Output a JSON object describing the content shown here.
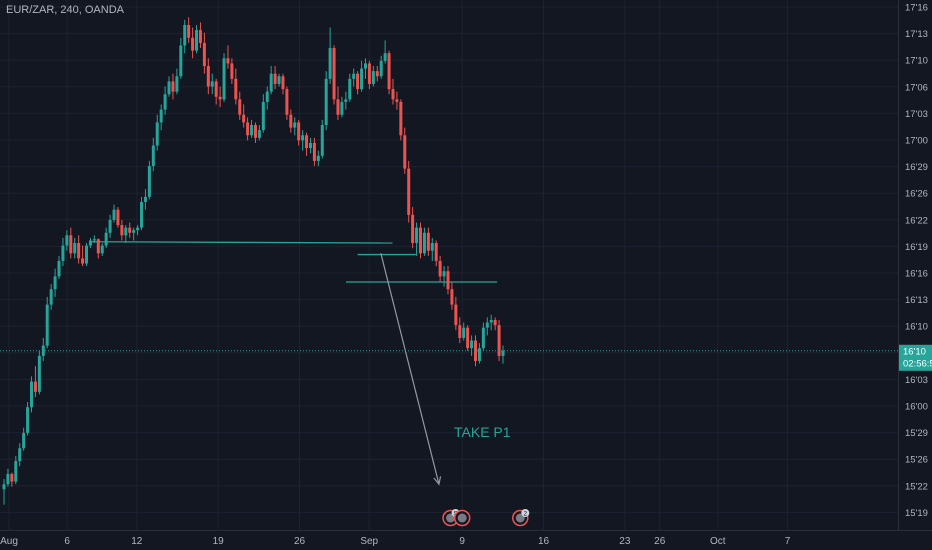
{
  "header": {
    "symbol_line": "EUR/ZAR, 240, OANDA"
  },
  "colors": {
    "background": "#131722",
    "grid": "#1e2230",
    "axis_text": "#b2b5be",
    "up": "#26a69a",
    "down": "#ef5350",
    "level_line": "#26a69a",
    "arrow": "#9598a1",
    "annotation": "#26a69a",
    "price_label_bg": "#26a69a"
  },
  "chart_data": {
    "type": "candlestick",
    "title": "EUR/ZAR, 240, OANDA",
    "y_ticks": [
      "17'16",
      "17'13",
      "17'10",
      "17'06",
      "17'03",
      "17'00",
      "16'29",
      "16'26",
      "16'22",
      "16'19",
      "16'16",
      "16'13",
      "16'10",
      "16'06",
      "16'03",
      "16'00",
      "15'29",
      "15'26",
      "15'22",
      "15'19"
    ],
    "x_ticks": [
      "Aug",
      "6",
      "12",
      "19",
      "26",
      "Sep",
      "9",
      "16",
      "23",
      "26",
      "Oct",
      "7"
    ],
    "current_price_label": "16'10",
    "countdown_label": "02:56:5",
    "annotations": [
      {
        "text": "TAKE P1"
      }
    ],
    "levels": [
      {
        "from_date": "Aug 8",
        "to_date": "Sep 3",
        "from_price": 16.245,
        "to_price": 16.24
      },
      {
        "from_date": "Aug 31",
        "to_date": "Sep 5",
        "from_price": 16.195,
        "to_price": 16.195
      },
      {
        "from_date": "Aug 30",
        "to_date": "Sep 12",
        "from_price": 16.088,
        "to_price": 16.088
      }
    ],
    "arrow": {
      "from_date": "Sep 2",
      "from_price": 16.2,
      "to_date": "Sep 7",
      "to_price": 15.3
    },
    "event_markers": [
      {
        "date": "Sep 8",
        "badge": "S"
      },
      {
        "date": "Sep 9",
        "badge": ""
      },
      {
        "date": "Sep 14",
        "badge": "2"
      }
    ],
    "candles": [
      {
        "o": 15.28,
        "h": 15.32,
        "l": 15.22,
        "c": 15.3
      },
      {
        "o": 15.3,
        "h": 15.36,
        "l": 15.29,
        "c": 15.34
      },
      {
        "o": 15.34,
        "h": 15.345,
        "l": 15.29,
        "c": 15.31
      },
      {
        "o": 15.31,
        "h": 15.41,
        "l": 15.3,
        "c": 15.39
      },
      {
        "o": 15.39,
        "h": 15.46,
        "l": 15.37,
        "c": 15.44
      },
      {
        "o": 15.44,
        "h": 15.52,
        "l": 15.43,
        "c": 15.5
      },
      {
        "o": 15.5,
        "h": 15.62,
        "l": 15.49,
        "c": 15.6
      },
      {
        "o": 15.6,
        "h": 15.72,
        "l": 15.58,
        "c": 15.7
      },
      {
        "o": 15.7,
        "h": 15.76,
        "l": 15.64,
        "c": 15.66
      },
      {
        "o": 15.66,
        "h": 15.82,
        "l": 15.65,
        "c": 15.8
      },
      {
        "o": 15.8,
        "h": 15.87,
        "l": 15.78,
        "c": 15.84
      },
      {
        "o": 15.84,
        "h": 16.03,
        "l": 15.83,
        "c": 16.0
      },
      {
        "o": 16.0,
        "h": 16.08,
        "l": 15.98,
        "c": 16.06
      },
      {
        "o": 16.06,
        "h": 16.14,
        "l": 16.03,
        "c": 16.11
      },
      {
        "o": 16.11,
        "h": 16.19,
        "l": 16.1,
        "c": 16.17
      },
      {
        "o": 16.17,
        "h": 16.26,
        "l": 16.15,
        "c": 16.23
      },
      {
        "o": 16.23,
        "h": 16.29,
        "l": 16.21,
        "c": 16.27
      },
      {
        "o": 16.27,
        "h": 16.3,
        "l": 16.18,
        "c": 16.2
      },
      {
        "o": 16.2,
        "h": 16.26,
        "l": 16.18,
        "c": 16.24
      },
      {
        "o": 16.24,
        "h": 16.27,
        "l": 16.16,
        "c": 16.18
      },
      {
        "o": 16.18,
        "h": 16.23,
        "l": 16.15,
        "c": 16.16
      },
      {
        "o": 16.16,
        "h": 16.24,
        "l": 16.15,
        "c": 16.23
      },
      {
        "o": 16.23,
        "h": 16.26,
        "l": 16.22,
        "c": 16.25
      },
      {
        "o": 16.25,
        "h": 16.27,
        "l": 16.24,
        "c": 16.255
      },
      {
        "o": 16.255,
        "h": 16.258,
        "l": 16.18,
        "c": 16.2
      },
      {
        "o": 16.2,
        "h": 16.24,
        "l": 16.19,
        "c": 16.23
      },
      {
        "o": 16.23,
        "h": 16.3,
        "l": 16.22,
        "c": 16.28
      },
      {
        "o": 16.28,
        "h": 16.35,
        "l": 16.26,
        "c": 16.33
      },
      {
        "o": 16.33,
        "h": 16.39,
        "l": 16.32,
        "c": 16.37
      },
      {
        "o": 16.37,
        "h": 16.38,
        "l": 16.3,
        "c": 16.31
      },
      {
        "o": 16.31,
        "h": 16.33,
        "l": 16.25,
        "c": 16.27
      },
      {
        "o": 16.27,
        "h": 16.31,
        "l": 16.24,
        "c": 16.3
      },
      {
        "o": 16.3,
        "h": 16.32,
        "l": 16.26,
        "c": 16.28
      },
      {
        "o": 16.28,
        "h": 16.3,
        "l": 16.25,
        "c": 16.29
      },
      {
        "o": 16.29,
        "h": 16.31,
        "l": 16.27,
        "c": 16.3
      },
      {
        "o": 16.3,
        "h": 16.42,
        "l": 16.29,
        "c": 16.4
      },
      {
        "o": 16.4,
        "h": 16.45,
        "l": 16.37,
        "c": 16.42
      },
      {
        "o": 16.42,
        "h": 16.56,
        "l": 16.41,
        "c": 16.54
      },
      {
        "o": 16.54,
        "h": 16.65,
        "l": 16.52,
        "c": 16.62
      },
      {
        "o": 16.62,
        "h": 16.74,
        "l": 16.6,
        "c": 16.71
      },
      {
        "o": 16.71,
        "h": 16.78,
        "l": 16.68,
        "c": 16.76
      },
      {
        "o": 16.76,
        "h": 16.85,
        "l": 16.74,
        "c": 16.82
      },
      {
        "o": 16.82,
        "h": 16.89,
        "l": 16.81,
        "c": 16.87
      },
      {
        "o": 16.87,
        "h": 16.9,
        "l": 16.8,
        "c": 16.83
      },
      {
        "o": 16.83,
        "h": 16.92,
        "l": 16.82,
        "c": 16.89
      },
      {
        "o": 16.89,
        "h": 17.04,
        "l": 16.88,
        "c": 17.01
      },
      {
        "o": 17.01,
        "h": 17.11,
        "l": 16.98,
        "c": 17.09
      },
      {
        "o": 17.09,
        "h": 17.12,
        "l": 17.02,
        "c": 17.04
      },
      {
        "o": 17.04,
        "h": 17.08,
        "l": 16.96,
        "c": 16.99
      },
      {
        "o": 16.99,
        "h": 17.09,
        "l": 16.98,
        "c": 17.07
      },
      {
        "o": 17.07,
        "h": 17.1,
        "l": 17.0,
        "c": 17.02
      },
      {
        "o": 17.02,
        "h": 17.06,
        "l": 16.9,
        "c": 16.93
      },
      {
        "o": 16.93,
        "h": 16.96,
        "l": 16.82,
        "c": 16.85
      },
      {
        "o": 16.85,
        "h": 16.9,
        "l": 16.82,
        "c": 16.87
      },
      {
        "o": 16.87,
        "h": 16.88,
        "l": 16.78,
        "c": 16.81
      },
      {
        "o": 16.81,
        "h": 16.85,
        "l": 16.77,
        "c": 16.8
      },
      {
        "o": 16.8,
        "h": 16.98,
        "l": 16.79,
        "c": 16.96
      },
      {
        "o": 16.96,
        "h": 17.01,
        "l": 16.92,
        "c": 16.94
      },
      {
        "o": 16.94,
        "h": 16.96,
        "l": 16.86,
        "c": 16.88
      },
      {
        "o": 16.88,
        "h": 16.92,
        "l": 16.78,
        "c": 16.8
      },
      {
        "o": 16.8,
        "h": 16.83,
        "l": 16.72,
        "c": 16.74
      },
      {
        "o": 16.74,
        "h": 16.78,
        "l": 16.69,
        "c": 16.71
      },
      {
        "o": 16.71,
        "h": 16.73,
        "l": 16.64,
        "c": 16.66
      },
      {
        "o": 16.66,
        "h": 16.72,
        "l": 16.65,
        "c": 16.7
      },
      {
        "o": 16.7,
        "h": 16.71,
        "l": 16.63,
        "c": 16.65
      },
      {
        "o": 16.65,
        "h": 16.7,
        "l": 16.64,
        "c": 16.68
      },
      {
        "o": 16.68,
        "h": 16.82,
        "l": 16.67,
        "c": 16.79
      },
      {
        "o": 16.79,
        "h": 16.85,
        "l": 16.76,
        "c": 16.83
      },
      {
        "o": 16.83,
        "h": 16.93,
        "l": 16.82,
        "c": 16.9
      },
      {
        "o": 16.9,
        "h": 16.93,
        "l": 16.84,
        "c": 16.86
      },
      {
        "o": 16.86,
        "h": 16.9,
        "l": 16.85,
        "c": 16.89
      },
      {
        "o": 16.89,
        "h": 16.9,
        "l": 16.82,
        "c": 16.84
      },
      {
        "o": 16.84,
        "h": 16.85,
        "l": 16.72,
        "c": 16.74
      },
      {
        "o": 16.74,
        "h": 16.76,
        "l": 16.67,
        "c": 16.69
      },
      {
        "o": 16.69,
        "h": 16.73,
        "l": 16.66,
        "c": 16.71
      },
      {
        "o": 16.71,
        "h": 16.72,
        "l": 16.62,
        "c": 16.64
      },
      {
        "o": 16.64,
        "h": 16.68,
        "l": 16.6,
        "c": 16.66
      },
      {
        "o": 16.66,
        "h": 16.67,
        "l": 16.58,
        "c": 16.61
      },
      {
        "o": 16.61,
        "h": 16.65,
        "l": 16.59,
        "c": 16.63
      },
      {
        "o": 16.63,
        "h": 16.65,
        "l": 16.54,
        "c": 16.56
      },
      {
        "o": 16.56,
        "h": 16.6,
        "l": 16.54,
        "c": 16.58
      },
      {
        "o": 16.58,
        "h": 16.72,
        "l": 16.57,
        "c": 16.7
      },
      {
        "o": 16.7,
        "h": 16.91,
        "l": 16.68,
        "c": 16.88
      },
      {
        "o": 16.88,
        "h": 17.08,
        "l": 16.86,
        "c": 17.0
      },
      {
        "o": 17.0,
        "h": 17.01,
        "l": 16.78,
        "c": 16.8
      },
      {
        "o": 16.8,
        "h": 16.85,
        "l": 16.72,
        "c": 16.74
      },
      {
        "o": 16.74,
        "h": 16.81,
        "l": 16.73,
        "c": 16.79
      },
      {
        "o": 16.79,
        "h": 16.83,
        "l": 16.76,
        "c": 16.8
      },
      {
        "o": 16.8,
        "h": 16.9,
        "l": 16.79,
        "c": 16.88
      },
      {
        "o": 16.88,
        "h": 16.92,
        "l": 16.85,
        "c": 16.9
      },
      {
        "o": 16.9,
        "h": 16.91,
        "l": 16.82,
        "c": 16.84
      },
      {
        "o": 16.84,
        "h": 16.95,
        "l": 16.83,
        "c": 16.92
      },
      {
        "o": 16.92,
        "h": 16.96,
        "l": 16.88,
        "c": 16.94
      },
      {
        "o": 16.94,
        "h": 16.95,
        "l": 16.84,
        "c": 16.86
      },
      {
        "o": 16.86,
        "h": 16.93,
        "l": 16.85,
        "c": 16.91
      },
      {
        "o": 16.91,
        "h": 16.93,
        "l": 16.87,
        "c": 16.89
      },
      {
        "o": 16.89,
        "h": 16.97,
        "l": 16.88,
        "c": 16.95
      },
      {
        "o": 16.95,
        "h": 17.03,
        "l": 16.94,
        "c": 16.98
      },
      {
        "o": 16.98,
        "h": 16.99,
        "l": 16.82,
        "c": 16.84
      },
      {
        "o": 16.84,
        "h": 16.88,
        "l": 16.78,
        "c": 16.8
      },
      {
        "o": 16.8,
        "h": 16.83,
        "l": 16.76,
        "c": 16.79
      },
      {
        "o": 16.79,
        "h": 16.8,
        "l": 16.64,
        "c": 16.66
      },
      {
        "o": 16.66,
        "h": 16.69,
        "l": 16.51,
        "c": 16.53
      },
      {
        "o": 16.53,
        "h": 16.56,
        "l": 16.32,
        "c": 16.35
      },
      {
        "o": 16.35,
        "h": 16.38,
        "l": 16.22,
        "c": 16.24
      },
      {
        "o": 16.24,
        "h": 16.32,
        "l": 16.19,
        "c": 16.3
      },
      {
        "o": 16.3,
        "h": 16.32,
        "l": 16.18,
        "c": 16.2
      },
      {
        "o": 16.2,
        "h": 16.3,
        "l": 16.19,
        "c": 16.28
      },
      {
        "o": 16.28,
        "h": 16.3,
        "l": 16.19,
        "c": 16.21
      },
      {
        "o": 16.21,
        "h": 16.26,
        "l": 16.17,
        "c": 16.24
      },
      {
        "o": 16.24,
        "h": 16.25,
        "l": 16.15,
        "c": 16.17
      },
      {
        "o": 16.17,
        "h": 16.19,
        "l": 16.09,
        "c": 16.11
      },
      {
        "o": 16.11,
        "h": 16.15,
        "l": 16.07,
        "c": 16.13
      },
      {
        "o": 16.13,
        "h": 16.15,
        "l": 16.04,
        "c": 16.06
      },
      {
        "o": 16.06,
        "h": 16.09,
        "l": 15.98,
        "c": 16.0
      },
      {
        "o": 16.0,
        "h": 16.03,
        "l": 15.9,
        "c": 15.92
      },
      {
        "o": 15.92,
        "h": 15.95,
        "l": 15.85,
        "c": 15.87
      },
      {
        "o": 15.87,
        "h": 15.93,
        "l": 15.86,
        "c": 15.91
      },
      {
        "o": 15.91,
        "h": 15.92,
        "l": 15.82,
        "c": 15.83
      },
      {
        "o": 15.83,
        "h": 15.88,
        "l": 15.8,
        "c": 15.86
      },
      {
        "o": 15.86,
        "h": 15.88,
        "l": 15.76,
        "c": 15.78
      },
      {
        "o": 15.78,
        "h": 15.85,
        "l": 15.77,
        "c": 15.83
      },
      {
        "o": 15.83,
        "h": 15.93,
        "l": 15.82,
        "c": 15.91
      },
      {
        "o": 15.91,
        "h": 15.95,
        "l": 15.88,
        "c": 15.93
      },
      {
        "o": 15.93,
        "h": 15.96,
        "l": 15.9,
        "c": 15.94
      },
      {
        "o": 15.94,
        "h": 15.95,
        "l": 15.9,
        "c": 15.92
      },
      {
        "o": 15.92,
        "h": 15.94,
        "l": 15.78,
        "c": 15.8
      },
      {
        "o": 15.8,
        "h": 15.84,
        "l": 15.77,
        "c": 15.82
      }
    ]
  }
}
